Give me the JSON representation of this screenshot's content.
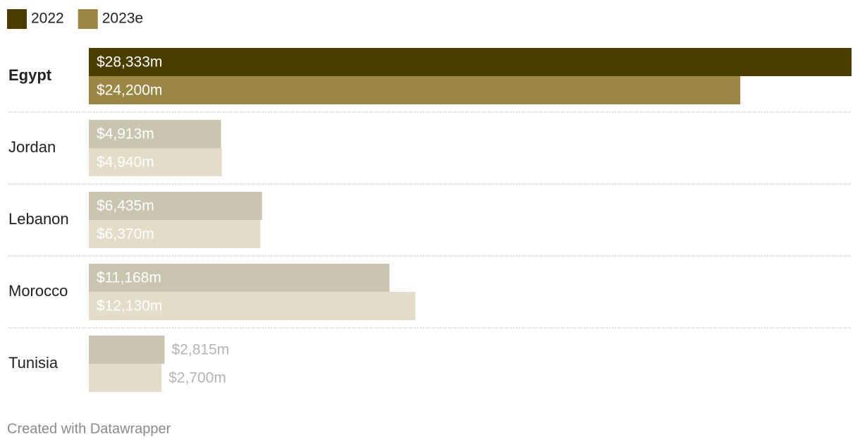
{
  "chart_data": {
    "type": "grouped-bar-horizontal",
    "categories": [
      "Egypt",
      "Jordan",
      "Lebanon",
      "Morocco",
      "Tunisia"
    ],
    "highlight": "Egypt",
    "series": [
      {
        "name": "2022",
        "color": "#4b3d00",
        "muted_color": "#c9c5b0",
        "values": [
          28333,
          4913,
          6435,
          11168,
          2815
        ],
        "value_labels": [
          "$28,333m",
          "$4,913m",
          "$6,435m",
          "$11,168m",
          "$2,815m"
        ]
      },
      {
        "name": "2023e",
        "color": "#9a8743",
        "muted_color": "#e2dcc9",
        "values": [
          24200,
          4940,
          6370,
          12130,
          2700
        ],
        "value_labels": [
          "$24,200m",
          "$4,940m",
          "$6,370m",
          "$12,130m",
          "$2,700m"
        ]
      }
    ],
    "footer": "Created with Datawrapper"
  }
}
